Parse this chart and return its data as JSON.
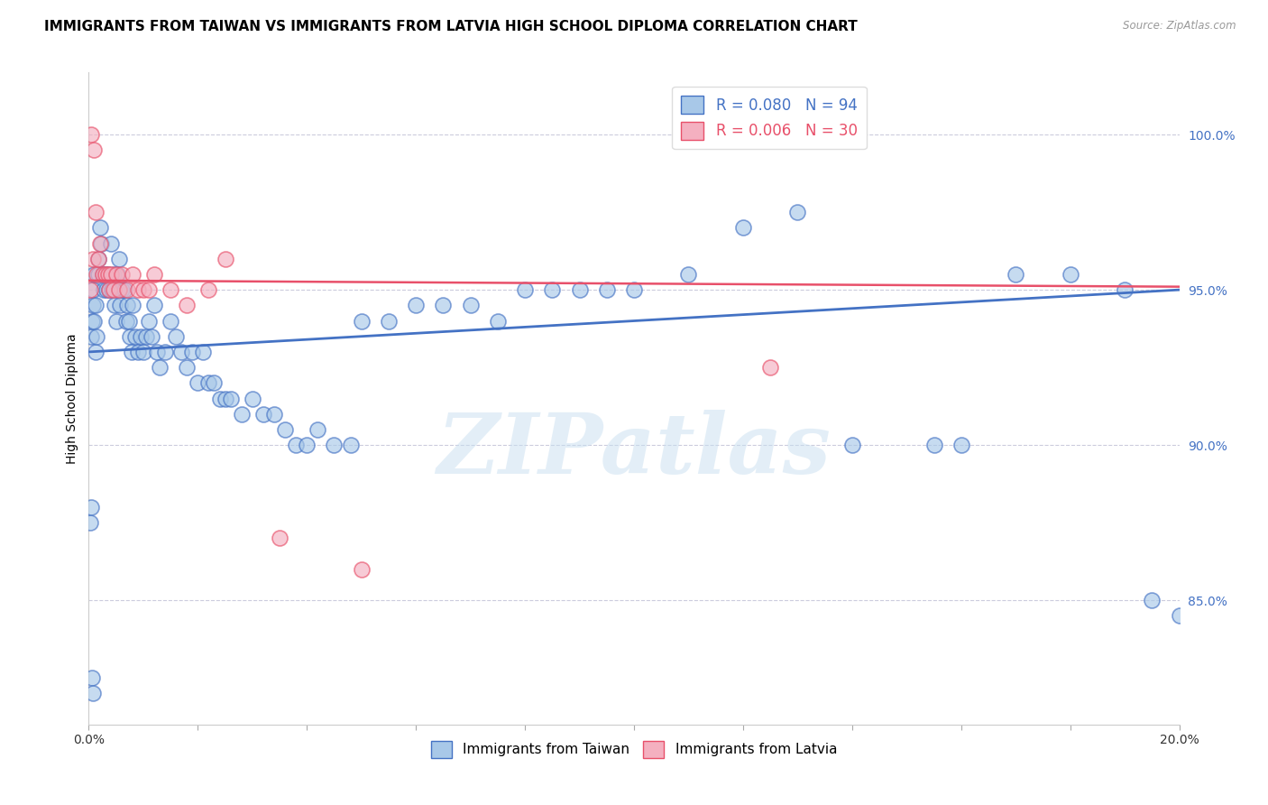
{
  "title": "IMMIGRANTS FROM TAIWAN VS IMMIGRANTS FROM LATVIA HIGH SCHOOL DIPLOMA CORRELATION CHART",
  "source": "Source: ZipAtlas.com",
  "ylabel": "High School Diploma",
  "xlim": [
    0.0,
    20.0
  ],
  "ylim": [
    81.0,
    102.0
  ],
  "right_yticks": [
    85.0,
    90.0,
    95.0,
    100.0
  ],
  "right_ytick_labels": [
    "85.0%",
    "90.0%",
    "95.0%",
    "100.0%"
  ],
  "taiwan_R": 0.08,
  "taiwan_N": 94,
  "latvia_R": 0.006,
  "latvia_N": 30,
  "taiwan_color": "#a8c8e8",
  "latvia_color": "#f4b0c0",
  "taiwan_line_color": "#4472c4",
  "latvia_line_color": "#e8506a",
  "watermark_text": "ZIPatlas",
  "taiwan_x": [
    0.05,
    0.06,
    0.07,
    0.08,
    0.09,
    0.1,
    0.12,
    0.13,
    0.15,
    0.17,
    0.18,
    0.2,
    0.22,
    0.25,
    0.28,
    0.3,
    0.32,
    0.35,
    0.38,
    0.4,
    0.42,
    0.45,
    0.48,
    0.5,
    0.53,
    0.55,
    0.58,
    0.6,
    0.65,
    0.68,
    0.7,
    0.73,
    0.75,
    0.78,
    0.8,
    0.85,
    0.9,
    0.95,
    1.0,
    1.05,
    1.1,
    1.15,
    1.2,
    1.25,
    1.3,
    1.4,
    1.5,
    1.6,
    1.7,
    1.8,
    1.9,
    2.0,
    2.1,
    2.2,
    2.3,
    2.4,
    2.5,
    2.6,
    2.8,
    3.0,
    3.2,
    3.4,
    3.6,
    3.8,
    4.0,
    4.2,
    4.5,
    4.8,
    5.0,
    5.5,
    6.0,
    6.5,
    7.0,
    7.5,
    8.0,
    8.5,
    9.0,
    9.5,
    10.0,
    11.0,
    12.0,
    13.0,
    14.0,
    15.5,
    16.0,
    17.0,
    18.0,
    19.0,
    19.5,
    20.0,
    0.03,
    0.04,
    0.06,
    0.08
  ],
  "taiwan_y": [
    93.5,
    94.0,
    94.5,
    95.0,
    95.5,
    94.0,
    94.5,
    93.0,
    93.5,
    95.5,
    96.0,
    97.0,
    96.5,
    95.5,
    95.0,
    95.5,
    95.0,
    95.5,
    95.0,
    96.5,
    95.0,
    95.5,
    94.5,
    94.0,
    95.5,
    96.0,
    94.5,
    95.0,
    95.0,
    94.0,
    94.5,
    94.0,
    93.5,
    93.0,
    94.5,
    93.5,
    93.0,
    93.5,
    93.0,
    93.5,
    94.0,
    93.5,
    94.5,
    93.0,
    92.5,
    93.0,
    94.0,
    93.5,
    93.0,
    92.5,
    93.0,
    92.0,
    93.0,
    92.0,
    92.0,
    91.5,
    91.5,
    91.5,
    91.0,
    91.5,
    91.0,
    91.0,
    90.5,
    90.0,
    90.0,
    90.5,
    90.0,
    90.0,
    94.0,
    94.0,
    94.5,
    94.5,
    94.5,
    94.0,
    95.0,
    95.0,
    95.0,
    95.0,
    95.0,
    95.5,
    97.0,
    97.5,
    90.0,
    90.0,
    90.0,
    95.5,
    95.5,
    95.0,
    85.0,
    84.5,
    87.5,
    88.0,
    82.5,
    82.0
  ],
  "latvia_x": [
    0.02,
    0.05,
    0.07,
    0.1,
    0.12,
    0.15,
    0.18,
    0.2,
    0.25,
    0.3,
    0.35,
    0.38,
    0.4,
    0.45,
    0.5,
    0.55,
    0.6,
    0.7,
    0.8,
    0.9,
    1.0,
    1.1,
    1.2,
    1.5,
    1.8,
    2.2,
    2.5,
    3.5,
    5.0,
    12.5
  ],
  "latvia_y": [
    95.0,
    100.0,
    96.0,
    99.5,
    97.5,
    95.5,
    96.0,
    96.5,
    95.5,
    95.5,
    95.5,
    95.0,
    95.5,
    95.0,
    95.5,
    95.0,
    95.5,
    95.0,
    95.5,
    95.0,
    95.0,
    95.0,
    95.5,
    95.0,
    94.5,
    95.0,
    96.0,
    87.0,
    86.0,
    92.5
  ],
  "taiwan_intercept": 93.0,
  "taiwan_slope": 0.1,
  "latvia_intercept": 95.3,
  "latvia_slope": -0.01,
  "legend_taiwan_label": "Immigrants from Taiwan",
  "legend_latvia_label": "Immigrants from Latvia",
  "background_color": "#ffffff",
  "grid_color": "#ccccdd",
  "title_fontsize": 11,
  "axis_label_fontsize": 10,
  "tick_fontsize": 10
}
